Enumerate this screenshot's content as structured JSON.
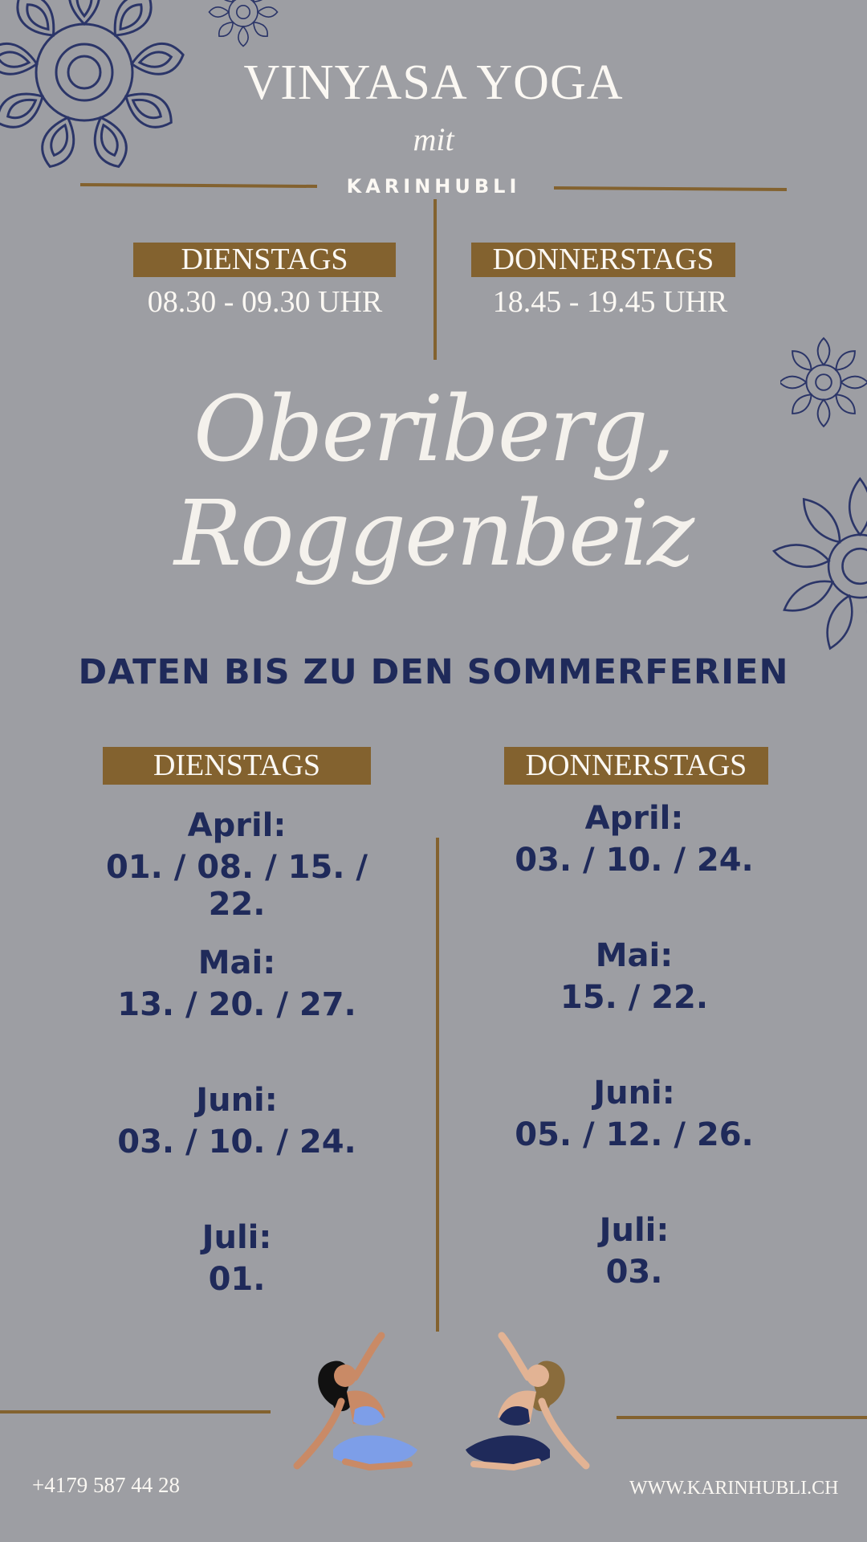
{
  "header": {
    "title": "VINYASA YOGA",
    "mit": "mit",
    "brand": "KARINHUBLI"
  },
  "schedule": {
    "day_left": "DIENSTAGS",
    "time_left": "08.30 - 09.30 UHR",
    "day_right": "DONNERSTAGS",
    "time_right": "18.45 - 19.45 UHR"
  },
  "location": "Oberiberg, Roggenbeiz",
  "dates_heading": "DATEN BIS ZU DEN SOMMERFERIEN",
  "dienstags": {
    "label": "DIENSTAGS",
    "months": [
      {
        "month": "April:",
        "dates": "01. / 08. / 15. / 22."
      },
      {
        "month": "Mai:",
        "dates": "13. / 20. / 27."
      },
      {
        "month": "Juni:",
        "dates": "03. / 10. / 24."
      },
      {
        "month": "Juli:",
        "dates": "01."
      }
    ]
  },
  "donnerstags": {
    "label": "DONNERSTAGS",
    "months": [
      {
        "month": "April:",
        "dates": "03. / 10. / 24."
      },
      {
        "month": "Mai:",
        "dates": "15. / 22."
      },
      {
        "month": "Juni:",
        "dates": "05. / 12. / 26."
      },
      {
        "month": "Juli:",
        "dates": "03."
      }
    ]
  },
  "footer": {
    "phone": "+4179 587 44 28",
    "website": "WWW.KARINHUBLI.CH"
  },
  "colors": {
    "background": "#9d9ea3",
    "gold": "#83622f",
    "navy": "#1f2a5a",
    "cream": "#fbf8f3"
  },
  "icons": [
    "mandala-icon",
    "yoga-woman-left-icon",
    "yoga-woman-right-icon"
  ]
}
